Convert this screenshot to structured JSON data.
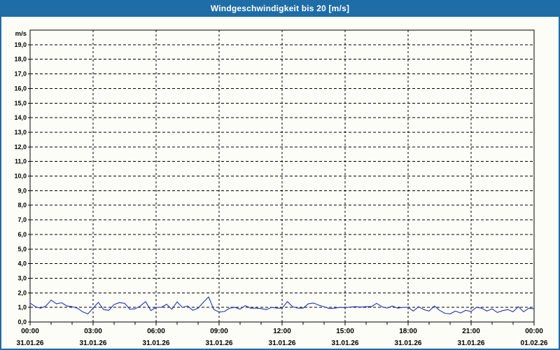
{
  "window": {
    "title": "Windgeschwindigkeit bis 20 [m/s]"
  },
  "colors": {
    "title_bar": "#1e6da6",
    "page_border": "#1e6da6",
    "background": "#fdfdf7",
    "grid": "#000000",
    "axis": "#000000",
    "series_line": "#2233bb",
    "title_text": "#ffffff"
  },
  "chart_data": {
    "type": "line",
    "title": "Windgeschwindigkeit bis 20 [m/s]",
    "ylabel": "m/s",
    "xlabel": "",
    "ylim": [
      0,
      20
    ],
    "grid": "dashed",
    "legend": "none",
    "y_axis": {
      "unit": "m/s",
      "tick_step": 1,
      "tick_labels": [
        "0,0",
        "1,0",
        "2,0",
        "3,0",
        "4,0",
        "5,0",
        "6,0",
        "7,0",
        "8,0",
        "9,0",
        "10,0",
        "11,0",
        "12,0",
        "13,0",
        "14,0",
        "15,0",
        "16,0",
        "17,0",
        "18,0",
        "19,0"
      ]
    },
    "x_axis": {
      "minor_tick_interval_hours": 1,
      "major_tick_interval_hours": 3,
      "ticks": [
        {
          "time": "00:00",
          "date": "31.01.26"
        },
        {
          "time": "03:00",
          "date": "31.01.26"
        },
        {
          "time": "06:00",
          "date": "31.01.26"
        },
        {
          "time": "09:00",
          "date": "31.01.26"
        },
        {
          "time": "12:00",
          "date": "31.01.26"
        },
        {
          "time": "15:00",
          "date": "31.01.26"
        },
        {
          "time": "18:00",
          "date": "31.01.26"
        },
        {
          "time": "21:00",
          "date": "31.01.26"
        },
        {
          "time": "00:00",
          "date": "01.02.26"
        }
      ]
    },
    "series": [
      {
        "name": "Windgeschwindigkeit",
        "color": "#2233bb",
        "x_start_hour": 0,
        "x_step_minutes": 15,
        "values_mps": [
          1.3,
          1.05,
          0.95,
          1.1,
          1.5,
          1.25,
          1.32,
          1.1,
          1.05,
          0.95,
          0.7,
          0.55,
          0.95,
          1.35,
          0.85,
          0.8,
          1.2,
          1.33,
          1.28,
          0.88,
          0.9,
          1.1,
          1.4,
          0.78,
          1.0,
          1.0,
          1.22,
          0.87,
          1.38,
          1.0,
          1.1,
          0.8,
          0.95,
          1.35,
          1.72,
          0.85,
          0.68,
          0.72,
          0.95,
          1.0,
          0.88,
          1.12,
          0.95,
          0.95,
          0.92,
          0.85,
          1.0,
          0.95,
          0.95,
          1.4,
          1.05,
          0.95,
          0.95,
          1.25,
          1.3,
          1.15,
          1.05,
          0.92,
          0.95,
          1.0,
          0.98,
          1.02,
          1.05,
          1.02,
          1.05,
          1.05,
          1.28,
          1.05,
          0.95,
          1.1,
          0.95,
          1.0,
          1.0,
          0.75,
          1.05,
          0.85,
          0.75,
          1.1,
          0.8,
          0.6,
          0.55,
          0.75,
          0.62,
          0.8,
          0.72,
          1.0,
          0.95,
          0.75,
          0.9,
          0.65,
          0.78,
          0.85,
          0.7,
          1.05,
          0.7,
          0.95,
          0.9
        ]
      }
    ]
  }
}
